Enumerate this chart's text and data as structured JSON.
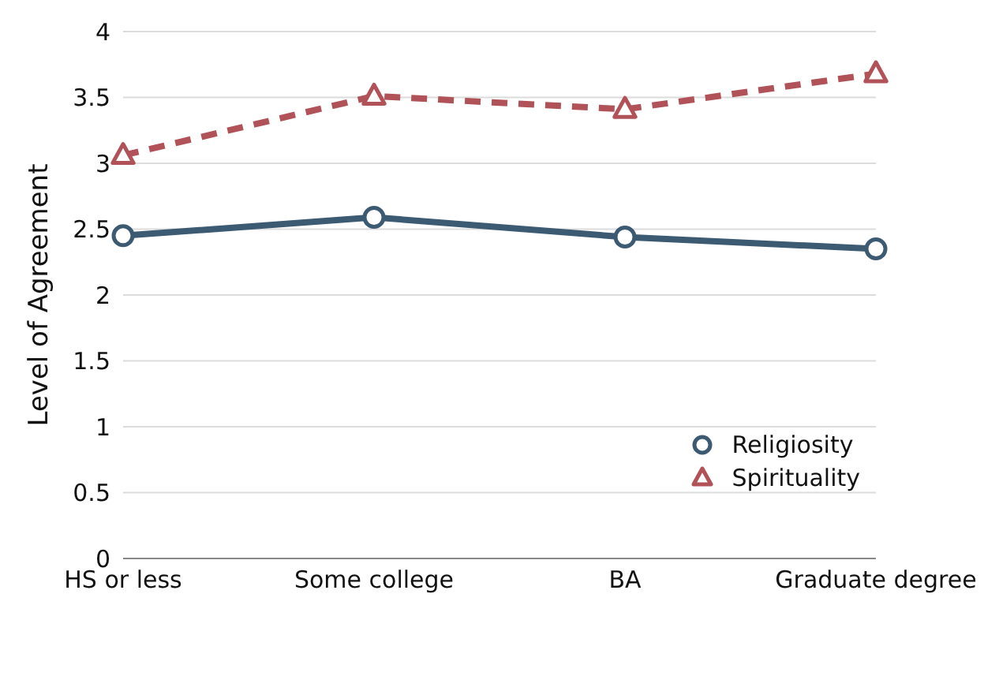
{
  "chart_data": {
    "type": "line",
    "ylabel": "Level of Agreement",
    "categories": [
      "HS or less",
      "Some college",
      "BA",
      "Graduate degree"
    ],
    "series": [
      {
        "name": "Religiosity",
        "color": "#3d5a73",
        "values": [
          2.45,
          2.59,
          2.44,
          2.35
        ],
        "marker": "circle",
        "line_style": "solid"
      },
      {
        "name": "Spirituality",
        "color": "#b05258",
        "values": [
          3.06,
          3.51,
          3.41,
          3.68
        ],
        "marker": "triangle",
        "line_style": "dashed"
      }
    ],
    "ylim": [
      0,
      4
    ],
    "yticks": [
      0,
      0.5,
      1,
      1.5,
      2,
      2.5,
      3,
      3.5,
      4
    ],
    "grid": "y",
    "legend": "bottom right"
  }
}
